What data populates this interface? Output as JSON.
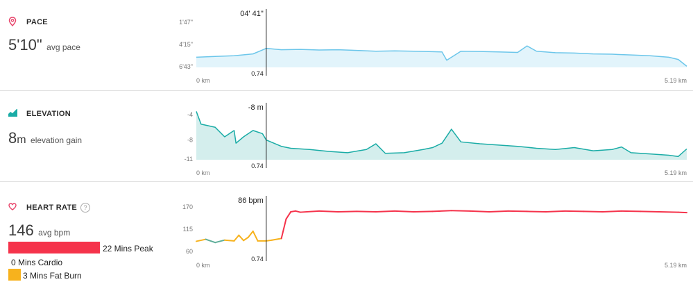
{
  "pace": {
    "title": "PACE",
    "value": "5'10\"",
    "unit_desc": "avg pace",
    "cursor_value": "04' 41\"",
    "colors": {
      "line": "#6cc6ea",
      "fill": "#e2f4fb"
    }
  },
  "elevation": {
    "title": "ELEVATION",
    "value": "8",
    "unit": "m",
    "unit_desc": "elevation gain",
    "cursor_value": "-8 m",
    "colors": {
      "line": "#1aaca6",
      "fill": "#d4eeed"
    }
  },
  "heart_rate": {
    "title": "HEART RATE",
    "help": "?",
    "value": "146",
    "unit_desc": "avg bpm",
    "cursor_value": "86 bpm",
    "zones": [
      {
        "label": "22 Mins Peak",
        "minutes": 22,
        "color": "#f5334b"
      },
      {
        "label": "0 Mins Cardio",
        "minutes": 0,
        "color": "#f58a2b"
      },
      {
        "label": "3 Mins Fat Burn",
        "minutes": 3,
        "color": "#f7b21d"
      }
    ]
  },
  "chart_data": [
    {
      "type": "line",
      "name": "pace",
      "x_start_label": "0 km",
      "x_end_label": "5.19 km",
      "cursor_x_label": "0.74",
      "cursor_x": 0.74,
      "xlim": [
        0,
        5.19
      ],
      "ytick_labels": [
        "1'47\"",
        "4'15\"",
        "6'43\""
      ],
      "ytick_seconds": [
        107,
        255,
        403
      ],
      "inverted_y": true,
      "x": [
        0,
        0.2,
        0.4,
        0.6,
        0.74,
        0.9,
        1.1,
        1.3,
        1.5,
        1.7,
        1.9,
        2.1,
        2.3,
        2.5,
        2.6,
        2.65,
        2.8,
        3.0,
        3.2,
        3.4,
        3.5,
        3.6,
        3.8,
        4.0,
        4.2,
        4.4,
        4.6,
        4.8,
        5.0,
        5.1,
        5.19
      ],
      "y_seconds": [
        340,
        335,
        330,
        318,
        281,
        290,
        288,
        292,
        290,
        295,
        300,
        298,
        300,
        303,
        305,
        360,
        300,
        302,
        305,
        308,
        265,
        300,
        310,
        312,
        318,
        320,
        325,
        330,
        340,
        355,
        400
      ]
    },
    {
      "type": "line",
      "name": "elevation",
      "x_start_label": "0 km",
      "x_end_label": "5.19 km",
      "cursor_x_label": "0.74",
      "cursor_x": 0.74,
      "xlim": [
        0,
        5.19
      ],
      "ytick_labels": [
        "-4",
        "-8",
        "-11"
      ],
      "ytick_values": [
        -4,
        -8,
        -11
      ],
      "x": [
        0,
        0.05,
        0.2,
        0.3,
        0.4,
        0.42,
        0.5,
        0.6,
        0.7,
        0.74,
        0.9,
        1.0,
        1.2,
        1.4,
        1.6,
        1.8,
        1.9,
        2.0,
        2.2,
        2.4,
        2.5,
        2.6,
        2.7,
        2.8,
        3.0,
        3.2,
        3.4,
        3.6,
        3.8,
        4.0,
        4.2,
        4.4,
        4.5,
        4.6,
        4.8,
        5.0,
        5.1,
        5.19
      ],
      "y": [
        -3.5,
        -5.5,
        -6.0,
        -7.5,
        -6.5,
        -8.5,
        -7.5,
        -6.5,
        -7.0,
        -8.0,
        -9.0,
        -9.3,
        -9.5,
        -9.8,
        -10.0,
        -9.5,
        -8.6,
        -10.1,
        -10.0,
        -9.5,
        -9.2,
        -8.5,
        -6.3,
        -8.3,
        -8.6,
        -8.8,
        -9.0,
        -9.3,
        -9.5,
        -9.2,
        -9.7,
        -9.5,
        -9.1,
        -10.0,
        -10.2,
        -10.4,
        -10.6,
        -9.4
      ]
    },
    {
      "type": "line",
      "name": "heart_rate",
      "x_start_label": "0 km",
      "x_end_label": "5.19 km",
      "cursor_x_label": "0.74",
      "cursor_x": 0.74,
      "xlim": [
        0,
        5.19
      ],
      "ytick_labels": [
        "170",
        "115",
        "60"
      ],
      "ytick_values": [
        170,
        115,
        60
      ],
      "x": [
        0,
        0.1,
        0.2,
        0.3,
        0.4,
        0.45,
        0.5,
        0.55,
        0.6,
        0.65,
        0.74,
        0.8,
        0.9,
        0.95,
        1.0,
        1.05,
        1.1,
        1.3,
        1.5,
        1.7,
        1.9,
        2.1,
        2.3,
        2.5,
        2.7,
        2.9,
        3.1,
        3.3,
        3.5,
        3.7,
        3.9,
        4.1,
        4.3,
        4.5,
        4.7,
        4.9,
        5.1,
        5.19
      ],
      "y": [
        85,
        90,
        82,
        88,
        86,
        100,
        87,
        95,
        110,
        86,
        86,
        88,
        92,
        140,
        158,
        160,
        157,
        160,
        158,
        159,
        158,
        160,
        158,
        159,
        161,
        160,
        158,
        160,
        159,
        158,
        160,
        159,
        158,
        160,
        159,
        158,
        157,
        156
      ],
      "zone_colors": {
        "fat_burn": "#f7b21d",
        "peak": "#f5334b",
        "below": "#5fae9a"
      }
    }
  ]
}
